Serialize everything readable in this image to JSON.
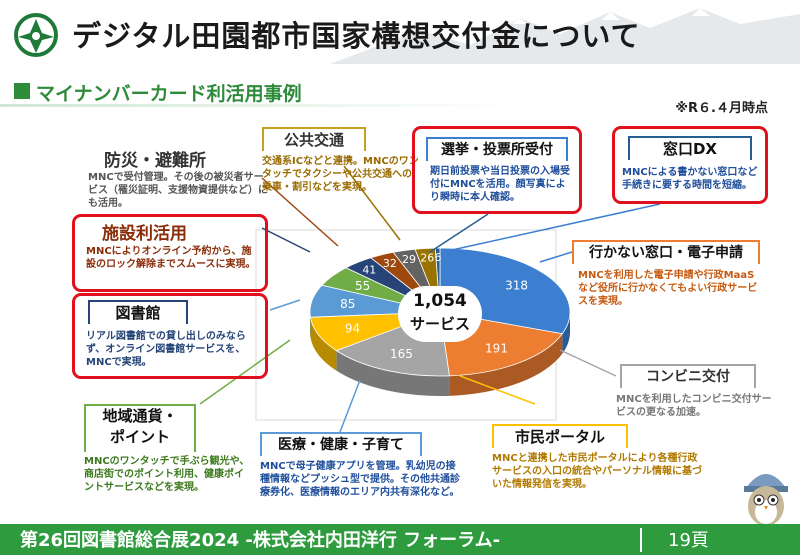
{
  "header": {
    "title": "デジタル田園都市国家構想交付金について",
    "subtitle": "マイナンバーカード利活用事例",
    "as_of": "※R６.４月時点"
  },
  "center_label": {
    "count": "1,054",
    "unit": "サービス"
  },
  "chart_data": {
    "type": "pie",
    "title": "",
    "categories": [
      "行かない窓口・電子申請",
      "コンビニ交付",
      "市民ポータル",
      "医療・健康・子育て",
      "地域通貨・ポイント",
      "図書館",
      "施設利活用",
      "防災・避難所",
      "公共交通",
      "選挙・投票所受付",
      "窓口DX"
    ],
    "values": [
      318,
      191,
      165,
      94,
      85,
      55,
      41,
      32,
      29,
      26,
      6
    ],
    "colors": [
      "#3c7fd0",
      "#ed7d31",
      "#a5a5a5",
      "#ffc000",
      "#5b9bd5",
      "#70ad47",
      "#264478",
      "#9e480e",
      "#636363",
      "#997300",
      "#255e91"
    ],
    "total": "1,054"
  },
  "categories": {
    "bousai": {
      "title": "防災・避難所",
      "body": "MNCで受付管理。その後の被災者サービス（罹災証明、支援物資提供など）にも活用。"
    },
    "kokyo": {
      "title": "公共交通",
      "body": "交通系ICなどと連携。MNCのワンタッチでタクシーや公共交通への乗車・割引などを実現。"
    },
    "senkyo": {
      "title": "選挙・投票所受付",
      "body": "期日前投票や当日投票の入場受付にMNCを活用。顔写真により瞬時に本人確認。"
    },
    "madoguchi_dx": {
      "title": "窓口DX",
      "body": "MNCによる書かない窓口など手続きに要する時間を短縮。"
    },
    "shisetsu": {
      "title": "施設利活用",
      "body": "MNCによりオンライン予約から、施設のロック解除までスムースに実現。"
    },
    "ikanai": {
      "title": "行かない窓口・電子申請",
      "body": "MNCを利用した電子申請や行政MaaSなど役所に行かなくてもよい行政サービスを実現。"
    },
    "toshokan": {
      "title": "図書館",
      "body": "リアル図書館での貸し出しのみならず、オンライン図書館サービスを、MNCで実現。"
    },
    "konbini": {
      "title": "コンビニ交付",
      "body": "MNCを利用したコンビニ交付サービスの更なる加速。"
    },
    "chiiki": {
      "title": "地域通貨・\nポイント",
      "body": "MNCのワンタッチで手ぶら観光や、商店街でのポイント利用、健康ポイントサービスなどを実現。"
    },
    "iryo": {
      "title": "医療・健康・子育て",
      "body": "MNCで母子健康アプリを管理。乳幼児の接種情報などプッシュ型で提供。その他共通診療券化、医療情報のエリア内共有深化など。"
    },
    "portal": {
      "title": "市民ポータル",
      "body": "MNCと連携した市民ポータルにより各種行政サービスの入口の統合やパーソナル情報に基づいた情報発信を実現。"
    }
  },
  "footer": {
    "text": "第26回図書館総合展2024 -株式会社内田洋行 フォーラム-",
    "page": "19頁"
  },
  "icons": [
    "town-emblem-icon",
    "mascot-icon"
  ]
}
